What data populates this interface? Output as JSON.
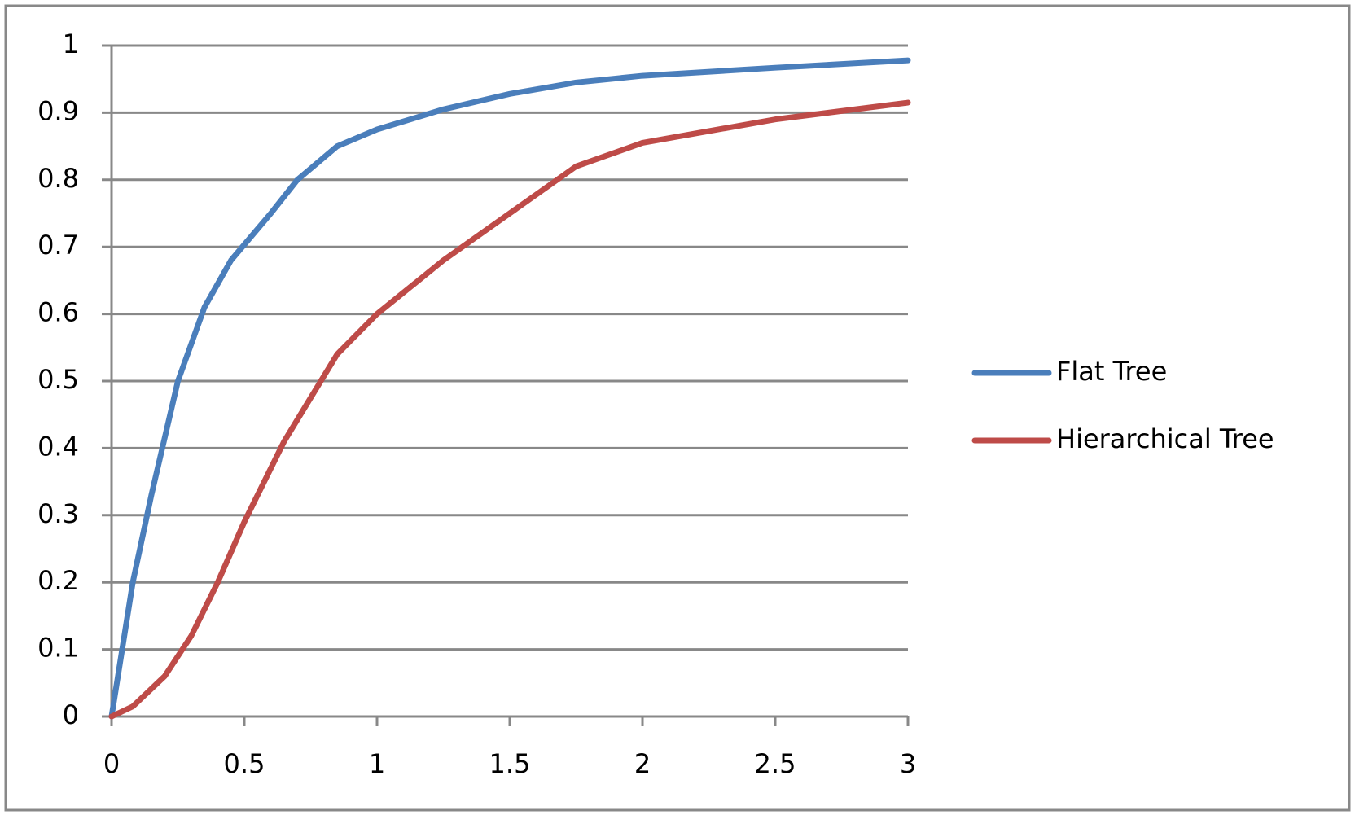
{
  "chart_data": {
    "type": "line",
    "series": [
      {
        "name": "Flat Tree",
        "color": "#4a7ebb",
        "x": [
          0,
          0.08,
          0.15,
          0.25,
          0.35,
          0.45,
          0.6,
          0.7,
          0.85,
          1,
          1.25,
          1.5,
          1.75,
          2,
          2.5,
          3
        ],
        "values": [
          0,
          0.2,
          0.33,
          0.5,
          0.61,
          0.68,
          0.75,
          0.8,
          0.85,
          0.875,
          0.905,
          0.928,
          0.945,
          0.955,
          0.967,
          0.978
        ]
      },
      {
        "name": "Hierarchical Tree",
        "color": "#be4b48",
        "x": [
          0,
          0.08,
          0.2,
          0.3,
          0.4,
          0.5,
          0.65,
          0.85,
          1,
          1.25,
          1.5,
          1.75,
          2,
          2.5,
          3
        ],
        "values": [
          0,
          0.015,
          0.06,
          0.12,
          0.2,
          0.29,
          0.41,
          0.54,
          0.6,
          0.68,
          0.75,
          0.82,
          0.855,
          0.89,
          0.915
        ]
      }
    ],
    "xlim": [
      0,
      3
    ],
    "xticks": [
      0,
      0.5,
      1,
      1.5,
      2,
      2.5,
      3
    ],
    "ylim": [
      0,
      1
    ],
    "yticks": [
      0,
      0.1,
      0.2,
      0.3,
      0.4,
      0.5,
      0.6,
      0.7,
      0.8,
      0.9,
      1
    ],
    "grid": true,
    "legend": "right"
  }
}
